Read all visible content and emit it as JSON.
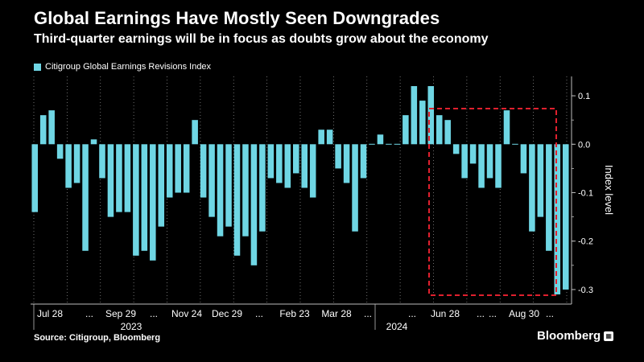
{
  "header": {
    "title": "Global Earnings Have Mostly Seen Downgrades",
    "subtitle": "Third-quarter earnings will be in focus as doubts grow about the economy"
  },
  "footer": {
    "source": "Source: Citigroup, Bloomberg",
    "brand": "Bloomberg"
  },
  "colors": {
    "bar": "#6fd6e4",
    "highlight_box": "#e0202e",
    "grid": "#8a8a8a",
    "background": "#000000"
  },
  "icons": {
    "brand_mark": "bloomberg-terminal-icon"
  },
  "chart_data": {
    "type": "bar",
    "title": "Global Earnings Have Mostly Seen Downgrades",
    "series": [
      {
        "name": "Citigroup Global Earnings Revisions Index",
        "values": [
          -0.14,
          0.06,
          0.07,
          -0.03,
          -0.09,
          -0.08,
          -0.22,
          0.01,
          -0.07,
          -0.15,
          -0.14,
          -0.14,
          -0.23,
          -0.22,
          -0.24,
          -0.17,
          -0.11,
          -0.1,
          -0.1,
          0.05,
          -0.11,
          -0.15,
          -0.19,
          -0.17,
          -0.23,
          -0.19,
          -0.25,
          -0.18,
          -0.07,
          -0.08,
          -0.09,
          -0.06,
          -0.09,
          -0.11,
          0.03,
          0.03,
          -0.05,
          -0.08,
          -0.18,
          -0.07,
          0.0,
          0.02,
          0.0,
          0.0,
          0.06,
          0.12,
          0.09,
          0.12,
          0.06,
          0.05,
          -0.02,
          -0.07,
          -0.04,
          -0.09,
          -0.07,
          -0.09,
          0.07,
          0.0,
          -0.06,
          -0.18,
          -0.15,
          -0.22,
          -0.31,
          -0.3
        ]
      }
    ],
    "x_tick_labels": [
      "Jul 28",
      "...",
      "Sep 29",
      "...",
      "Nov 24",
      "Dec 29",
      "...",
      "Feb 23",
      "Mar 28",
      "...",
      "...",
      "Jun 28",
      "...",
      "...",
      "Aug 30",
      "..."
    ],
    "year_labels": [
      "2023",
      "2024"
    ],
    "ylabel": "Index level",
    "ylim": [
      -0.33,
      0.14
    ],
    "y_ticks": [
      0.1,
      0.0,
      -0.1,
      -0.2,
      -0.3
    ],
    "y_tick_labels": [
      "0.1",
      "0.0",
      "-0.1",
      "-0.2",
      "-0.3"
    ],
    "annotation": "highlighted recent period",
    "highlight_range": [
      50,
      63
    ],
    "gridlines": "vertical dotted",
    "legend_position": "top-left"
  }
}
